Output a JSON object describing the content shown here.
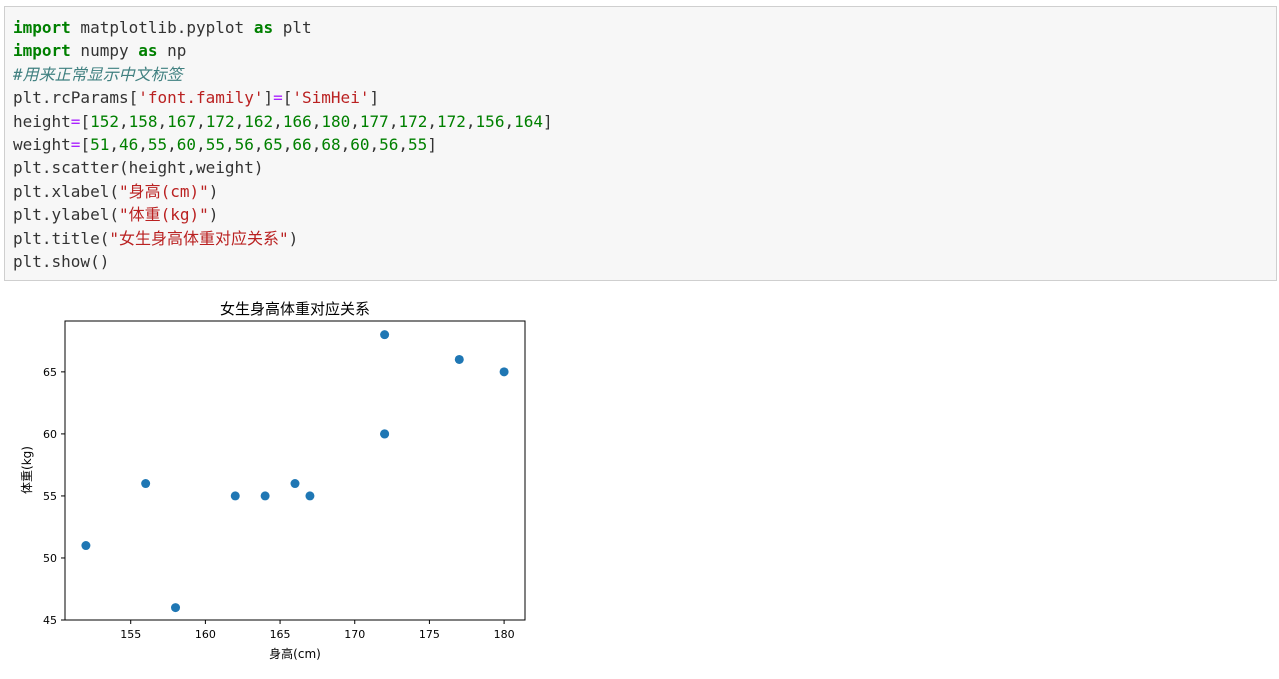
{
  "code_cell": {
    "lines": [
      [
        {
          "t": "import",
          "c": "kw"
        },
        {
          "t": " matplotlib.pyplot ",
          "c": ""
        },
        {
          "t": "as",
          "c": "kw"
        },
        {
          "t": " plt",
          "c": ""
        }
      ],
      [
        {
          "t": "import",
          "c": "kw"
        },
        {
          "t": " numpy ",
          "c": ""
        },
        {
          "t": "as",
          "c": "kw"
        },
        {
          "t": " np",
          "c": ""
        }
      ],
      [
        {
          "t": "#用来正常显示中文标签",
          "c": "cm"
        }
      ],
      [
        {
          "t": "plt.rcParams[",
          "c": ""
        },
        {
          "t": "'font.family'",
          "c": "st"
        },
        {
          "t": "]",
          "c": ""
        },
        {
          "t": "=",
          "c": "op"
        },
        {
          "t": "[",
          "c": ""
        },
        {
          "t": "'SimHei'",
          "c": "st"
        },
        {
          "t": "]",
          "c": ""
        }
      ],
      [
        {
          "t": "height",
          "c": ""
        },
        {
          "t": "=",
          "c": "op"
        },
        {
          "t": "[",
          "c": ""
        },
        {
          "t": "152",
          "c": "nm"
        },
        {
          "t": ",",
          "c": ""
        },
        {
          "t": "158",
          "c": "nm"
        },
        {
          "t": ",",
          "c": ""
        },
        {
          "t": "167",
          "c": "nm"
        },
        {
          "t": ",",
          "c": ""
        },
        {
          "t": "172",
          "c": "nm"
        },
        {
          "t": ",",
          "c": ""
        },
        {
          "t": "162",
          "c": "nm"
        },
        {
          "t": ",",
          "c": ""
        },
        {
          "t": "166",
          "c": "nm"
        },
        {
          "t": ",",
          "c": ""
        },
        {
          "t": "180",
          "c": "nm"
        },
        {
          "t": ",",
          "c": ""
        },
        {
          "t": "177",
          "c": "nm"
        },
        {
          "t": ",",
          "c": ""
        },
        {
          "t": "172",
          "c": "nm"
        },
        {
          "t": ",",
          "c": ""
        },
        {
          "t": "172",
          "c": "nm"
        },
        {
          "t": ",",
          "c": ""
        },
        {
          "t": "156",
          "c": "nm"
        },
        {
          "t": ",",
          "c": ""
        },
        {
          "t": "164",
          "c": "nm"
        },
        {
          "t": "]",
          "c": ""
        }
      ],
      [
        {
          "t": "weight",
          "c": ""
        },
        {
          "t": "=",
          "c": "op"
        },
        {
          "t": "[",
          "c": ""
        },
        {
          "t": "51",
          "c": "nm"
        },
        {
          "t": ",",
          "c": ""
        },
        {
          "t": "46",
          "c": "nm"
        },
        {
          "t": ",",
          "c": ""
        },
        {
          "t": "55",
          "c": "nm"
        },
        {
          "t": ",",
          "c": ""
        },
        {
          "t": "60",
          "c": "nm"
        },
        {
          "t": ",",
          "c": ""
        },
        {
          "t": "55",
          "c": "nm"
        },
        {
          "t": ",",
          "c": ""
        },
        {
          "t": "56",
          "c": "nm"
        },
        {
          "t": ",",
          "c": ""
        },
        {
          "t": "65",
          "c": "nm"
        },
        {
          "t": ",",
          "c": ""
        },
        {
          "t": "66",
          "c": "nm"
        },
        {
          "t": ",",
          "c": ""
        },
        {
          "t": "68",
          "c": "nm"
        },
        {
          "t": ",",
          "c": ""
        },
        {
          "t": "60",
          "c": "nm"
        },
        {
          "t": ",",
          "c": ""
        },
        {
          "t": "56",
          "c": "nm"
        },
        {
          "t": ",",
          "c": ""
        },
        {
          "t": "55",
          "c": "nm"
        },
        {
          "t": "]",
          "c": ""
        }
      ],
      [
        {
          "t": "plt.scatter(height,weight)",
          "c": ""
        }
      ],
      [
        {
          "t": "plt.xlabel(",
          "c": ""
        },
        {
          "t": "\"身高(cm)\"",
          "c": "st"
        },
        {
          "t": ")",
          "c": ""
        }
      ],
      [
        {
          "t": "plt.ylabel(",
          "c": ""
        },
        {
          "t": "\"体重(kg)\"",
          "c": "st"
        },
        {
          "t": ")",
          "c": ""
        }
      ],
      [
        {
          "t": "plt.title(",
          "c": ""
        },
        {
          "t": "\"女生身高体重对应关系\"",
          "c": "st"
        },
        {
          "t": ")",
          "c": ""
        }
      ],
      [
        {
          "t": "plt.show()",
          "c": ""
        }
      ]
    ]
  },
  "chart_data": {
    "type": "scatter",
    "title": "女生身高体重对应关系",
    "xlabel": "身高(cm)",
    "ylabel": "体重(kg)",
    "x": [
      152,
      158,
      167,
      172,
      162,
      166,
      180,
      177,
      172,
      172,
      156,
      164
    ],
    "y": [
      51,
      46,
      55,
      60,
      55,
      56,
      65,
      66,
      68,
      60,
      56,
      55
    ],
    "xlim": [
      150.6,
      181.4
    ],
    "ylim": [
      45.0,
      69.1
    ],
    "xticks": [
      155,
      160,
      165,
      170,
      175,
      180
    ],
    "yticks": [
      45,
      50,
      55,
      60,
      65
    ],
    "point_color": "#1f77b4",
    "grid": false
  }
}
